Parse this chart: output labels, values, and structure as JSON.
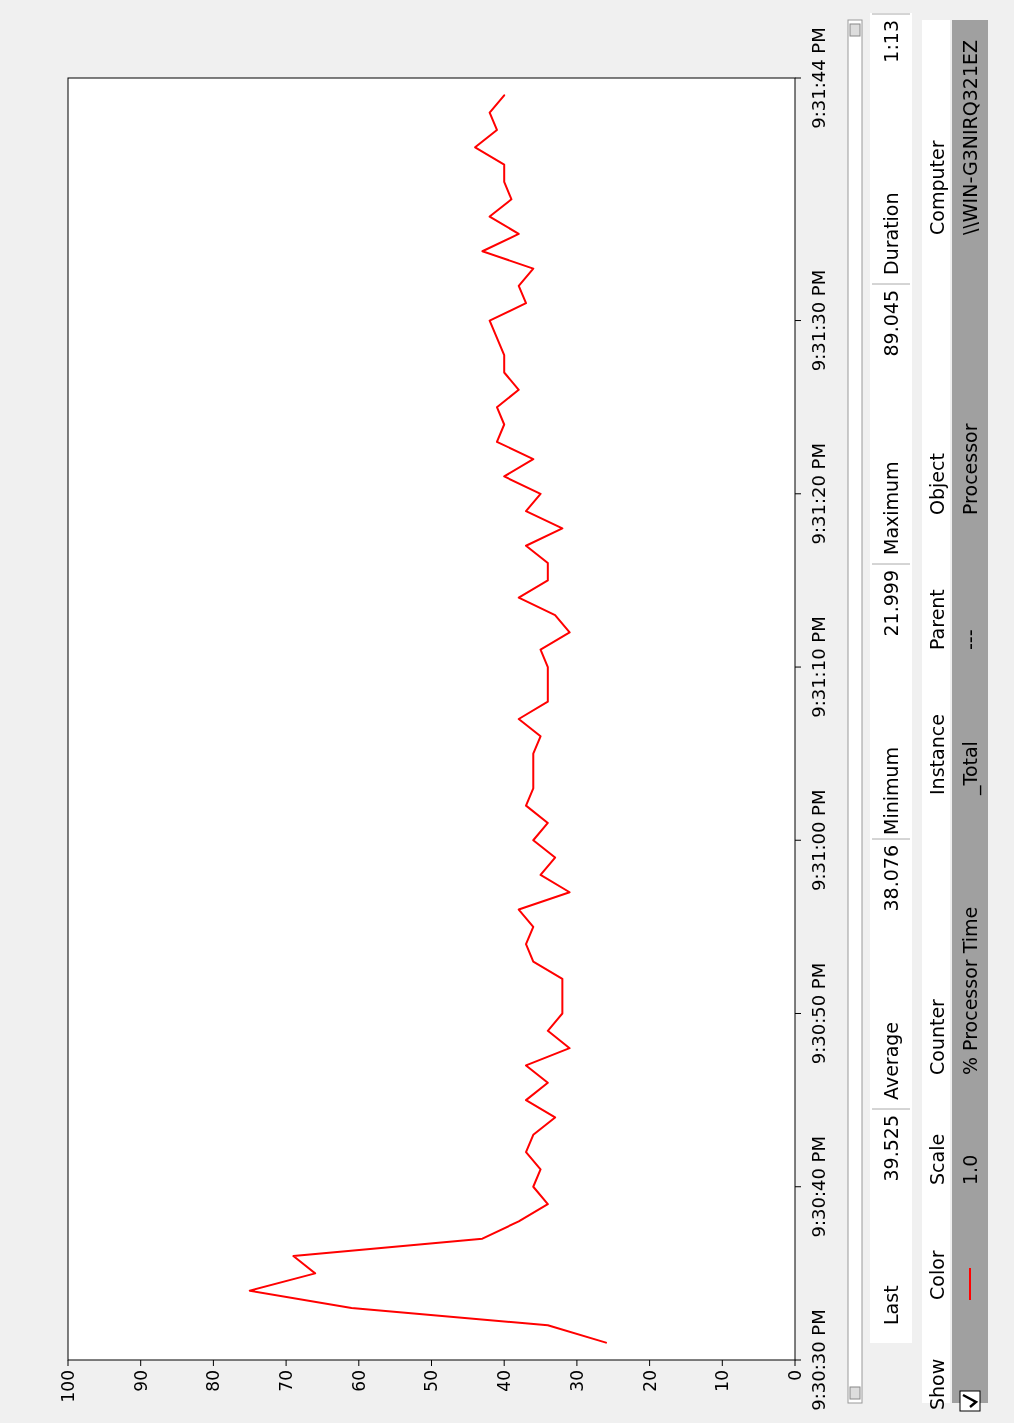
{
  "chart_data": {
    "type": "line",
    "color": "#ff0000",
    "x": [
      26,
      34,
      61,
      75,
      66,
      69,
      43,
      38,
      34,
      36,
      35,
      37,
      36,
      33,
      37,
      34,
      37,
      31,
      34,
      32,
      32,
      32,
      36,
      37,
      36,
      38,
      31,
      35,
      33,
      36,
      34,
      37,
      36,
      36,
      36,
      35,
      38,
      34,
      34,
      34,
      35,
      31,
      33,
      38,
      34,
      34,
      37,
      32,
      37,
      35,
      40,
      36,
      41,
      40,
      41,
      38,
      40,
      40,
      41,
      42,
      37,
      38,
      36,
      43,
      38,
      42,
      39,
      40,
      40,
      44,
      41,
      42,
      40
    ],
    "values": [
      21.508611,
      21.508889,
      21.509167,
      21.509444,
      21.509722,
      21.51,
      21.510278,
      21.510556,
      21.510833,
      21.511111,
      21.511389,
      21.511667,
      21.511944,
      21.512222,
      21.5125,
      21.512778,
      21.513056,
      21.513333,
      21.513611,
      21.513889,
      21.514167,
      21.514444,
      21.514722,
      21.515,
      21.515278,
      21.515556,
      21.515833,
      21.516111,
      21.516389,
      21.516667,
      21.516944,
      21.517222,
      21.5175,
      21.517778,
      21.518056,
      21.518333,
      21.518611,
      21.518889,
      21.519167,
      21.519444,
      21.519722,
      21.52,
      21.520278,
      21.520556,
      21.520833,
      21.521111,
      21.521389,
      21.521667,
      21.521944,
      21.522222,
      21.5225,
      21.522778,
      21.523056,
      21.523333,
      21.523611,
      21.523889,
      21.524167,
      21.524444,
      21.524722,
      21.525,
      21.525278,
      21.525556,
      21.525833,
      21.526111,
      21.526389,
      21.526667,
      21.526944,
      21.527222,
      21.5275,
      21.527778,
      21.528056,
      21.528333,
      21.528611
    ],
    "ylim": [
      21.508333,
      21.528889
    ],
    "yticks": [
      {
        "value": 21.508333,
        "label": "9:30:30 PM"
      },
      {
        "value": 21.511111,
        "label": "9:30:40 PM"
      },
      {
        "value": 21.513889,
        "label": "9:30:50 PM"
      },
      {
        "value": 21.516667,
        "label": "9:31:00 PM"
      },
      {
        "value": 21.519444,
        "label": "9:31:10 PM"
      },
      {
        "value": 21.522222,
        "label": "9:31:20 PM"
      },
      {
        "value": 21.525,
        "label": "9:31:30 PM"
      },
      {
        "value": 21.528889,
        "label": "9:31:44 PM"
      }
    ],
    "xlim": [
      100,
      0
    ],
    "xticks": [
      0,
      10,
      20,
      30,
      40,
      50,
      60,
      70,
      80,
      90,
      100
    ],
    "annotations": [
      "Last",
      "39.525",
      "Average",
      "38.076",
      "Minimum",
      "21.999",
      "Maximum",
      "89.045",
      "Duration",
      "1:13",
      "Show",
      "Color",
      "Scale",
      "Counter",
      "Instance",
      "Parent",
      "Object",
      "Computer",
      "1.0",
      "% Processor Time",
      "_Total",
      "---",
      "Processor",
      "\\\\WIN-G3NIRQ321EZ"
    ]
  }
}
